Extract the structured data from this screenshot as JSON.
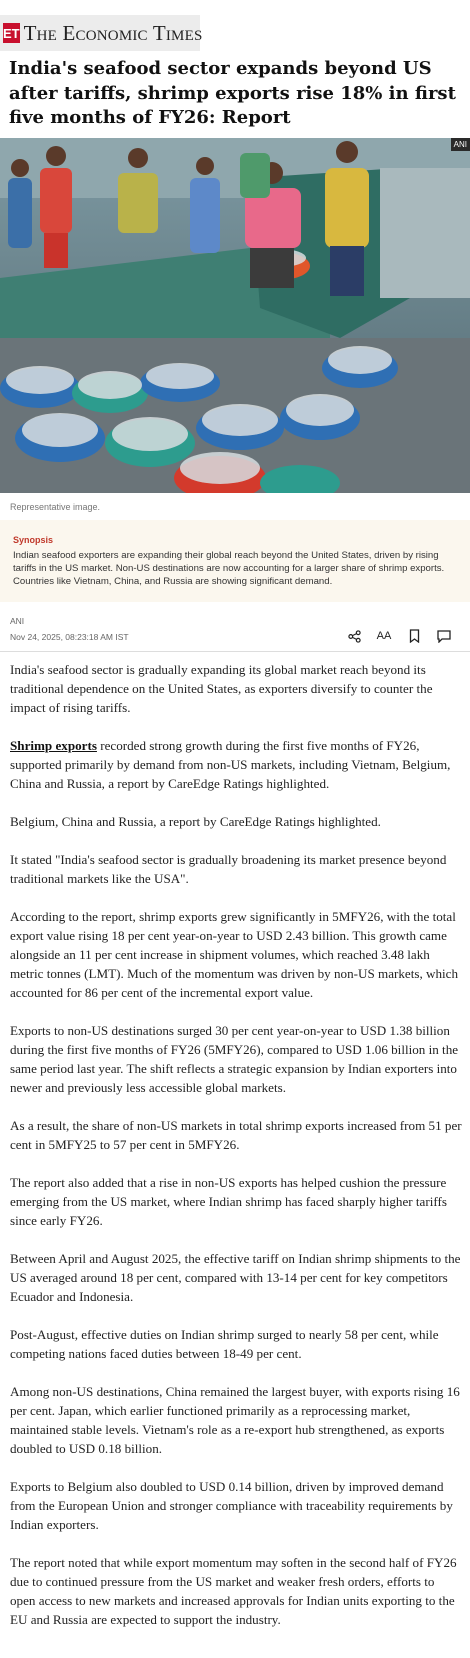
{
  "brand": {
    "logo_text": "ET",
    "name": "The Economic Times"
  },
  "headline": "India's seafood sector expands beyond US after tariffs, shrimp exports rise 18% in first five months of FY26: Report",
  "image": {
    "source_tag": "ANI",
    "caption": "Representative image."
  },
  "synopsis": {
    "title": "Synopsis",
    "text": "Indian seafood exporters are expanding their global reach beyond the United States, driven by rising tariffs in the US market. Non-US destinations are now accounting for a larger share of shrimp exports. Countries like Vietnam, China, and Russia are showing significant demand."
  },
  "meta": {
    "agency": "ANI",
    "timestamp": "Nov 24, 2025, 08:23:18 AM IST"
  },
  "actions": [
    {
      "name": "share-icon",
      "glyph": "share"
    },
    {
      "name": "font-size-icon",
      "glyph": "AA"
    },
    {
      "name": "bookmark-icon",
      "glyph": "bookmark"
    },
    {
      "name": "comment-icon",
      "glyph": "comment"
    }
  ],
  "article": {
    "p1": "India's seafood sector is gradually expanding its global market reach beyond its traditional dependence on the United States, as exporters diversify to counter the impact of rising tariffs.",
    "p2_link": "Shrimp exports",
    "p2_rest": " recorded strong growth during the first five months of FY26, supported primarily by demand from non-US markets, including Vietnam, Belgium, China and Russia, a report by CareEdge Ratings highlighted.",
    "p3": "Belgium, China and Russia, a report by CareEdge Ratings highlighted.",
    "p4": "It stated \"India's seafood sector is gradually broadening its market presence beyond traditional markets like the USA\".",
    "p5": "According to the report, shrimp exports grew significantly in 5MFY26, with the total export value rising 18 per cent year-on-year to USD 2.43 billion. This growth came alongside an 11 per cent increase in shipment volumes, which reached 3.48 lakh metric tonnes (LMT). Much of the momentum was driven by non-US markets, which accounted for 86 per cent of the incremental export value.",
    "p6": "Exports to non-US destinations surged 30 per cent year-on-year to USD 1.38 billion during the first five months of FY26 (5MFY26), compared to USD 1.06 billion in the same period last year. The shift reflects a strategic expansion by Indian exporters into newer and previously less accessible global markets.",
    "p7": "As a result, the share of non-US markets in total shrimp exports increased from 51 per cent in 5MFY25 to 57 per cent in 5MFY26.",
    "p8": "The report also added that a rise in non-US exports has helped cushion the pressure emerging from the US market, where Indian shrimp has faced sharply higher tariffs since early FY26.",
    "p9": "Between April and August 2025, the effective tariff on Indian shrimp shipments to the US averaged around 18 per cent, compared with 13-14 per cent for key competitors Ecuador and Indonesia.",
    "p10": "Post-August, effective duties on Indian shrimp surged to nearly 58 per cent, while competing nations faced duties between 18-49 per cent.",
    "p11": "Among non-US destinations, China remained the largest buyer, with exports rising 16 per cent. Japan, which earlier functioned primarily as a reprocessing market, maintained stable levels. Vietnam's role as a re-export hub strengthened, as exports doubled to USD 0.18 billion.",
    "p12": "Exports to Belgium also doubled to USD 0.14 billion, driven by improved demand from the European Union and stronger compliance with traceability requirements by Indian exporters.",
    "p13": "The report noted that while export momentum may soften in the second half of FY26 due to continued pressure from the US market and weaker fresh orders, efforts to open access to new markets and increased approvals for Indian units exporting to the EU and Russia are expected to support the industry."
  }
}
